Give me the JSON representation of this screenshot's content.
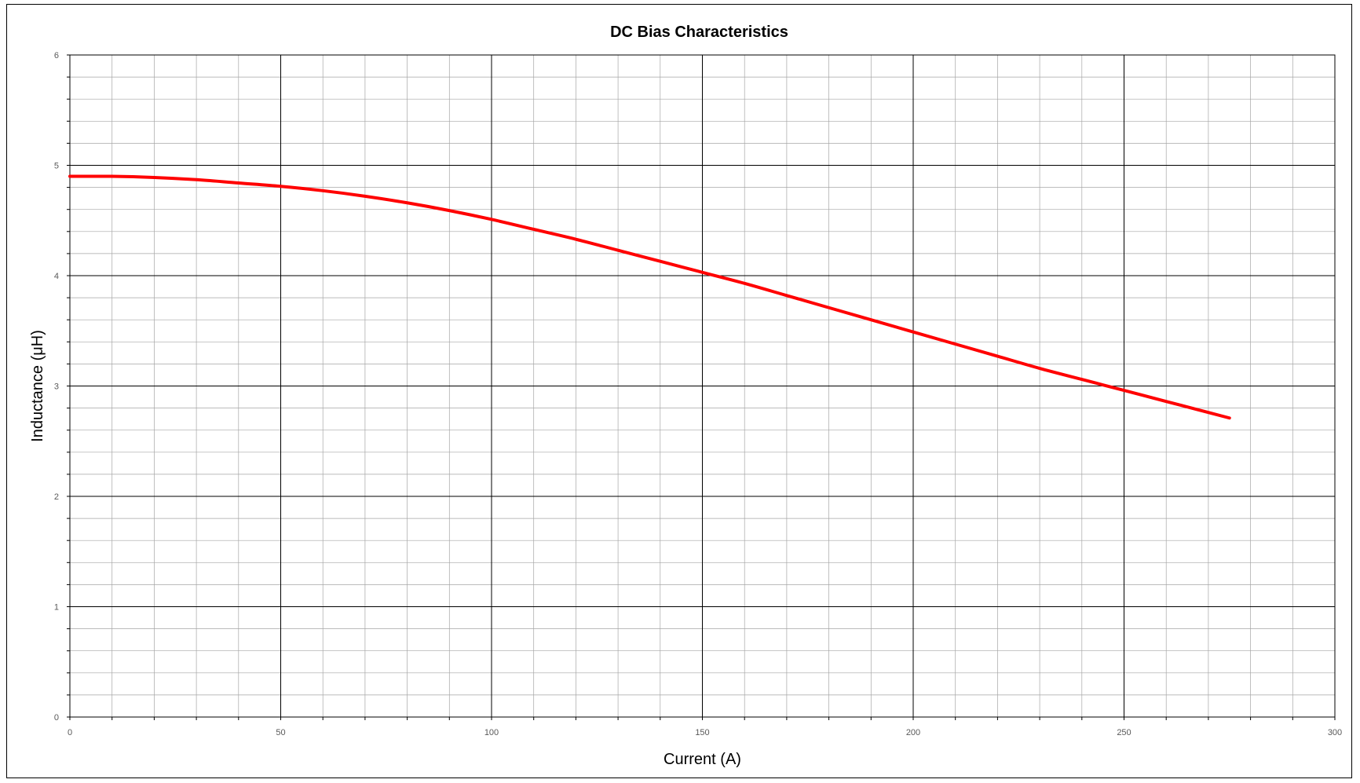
{
  "chart_data": {
    "type": "line",
    "title": "DC Bias Characteristics",
    "xlabel": "Current (A)",
    "ylabel": "Inductance (μH)",
    "xlim": [
      0,
      300
    ],
    "ylim": [
      0,
      6
    ],
    "x_ticks": [
      0,
      50,
      100,
      150,
      200,
      250,
      300
    ],
    "y_ticks": [
      0,
      1,
      2,
      3,
      4,
      5,
      6
    ],
    "x_minor_step": 10,
    "y_minor_step": 0.2,
    "grid": true,
    "legend": "none",
    "colors": {
      "line": "#ff0000",
      "major_grid": "#000000",
      "minor_grid": "#a6a6a6",
      "tick_text": "#595959"
    },
    "series": [
      {
        "x": [
          0,
          10,
          20,
          30,
          40,
          50,
          60,
          70,
          80,
          90,
          100,
          110,
          120,
          130,
          140,
          150,
          160,
          170,
          180,
          190,
          200,
          210,
          220,
          230,
          240,
          250,
          260,
          270,
          275
        ],
        "y": [
          4.9,
          4.9,
          4.89,
          4.87,
          4.84,
          4.81,
          4.77,
          4.72,
          4.66,
          4.59,
          4.51,
          4.42,
          4.33,
          4.23,
          4.13,
          4.03,
          3.93,
          3.82,
          3.71,
          3.6,
          3.49,
          3.38,
          3.27,
          3.16,
          3.06,
          2.96,
          2.86,
          2.76,
          2.71
        ]
      }
    ]
  }
}
